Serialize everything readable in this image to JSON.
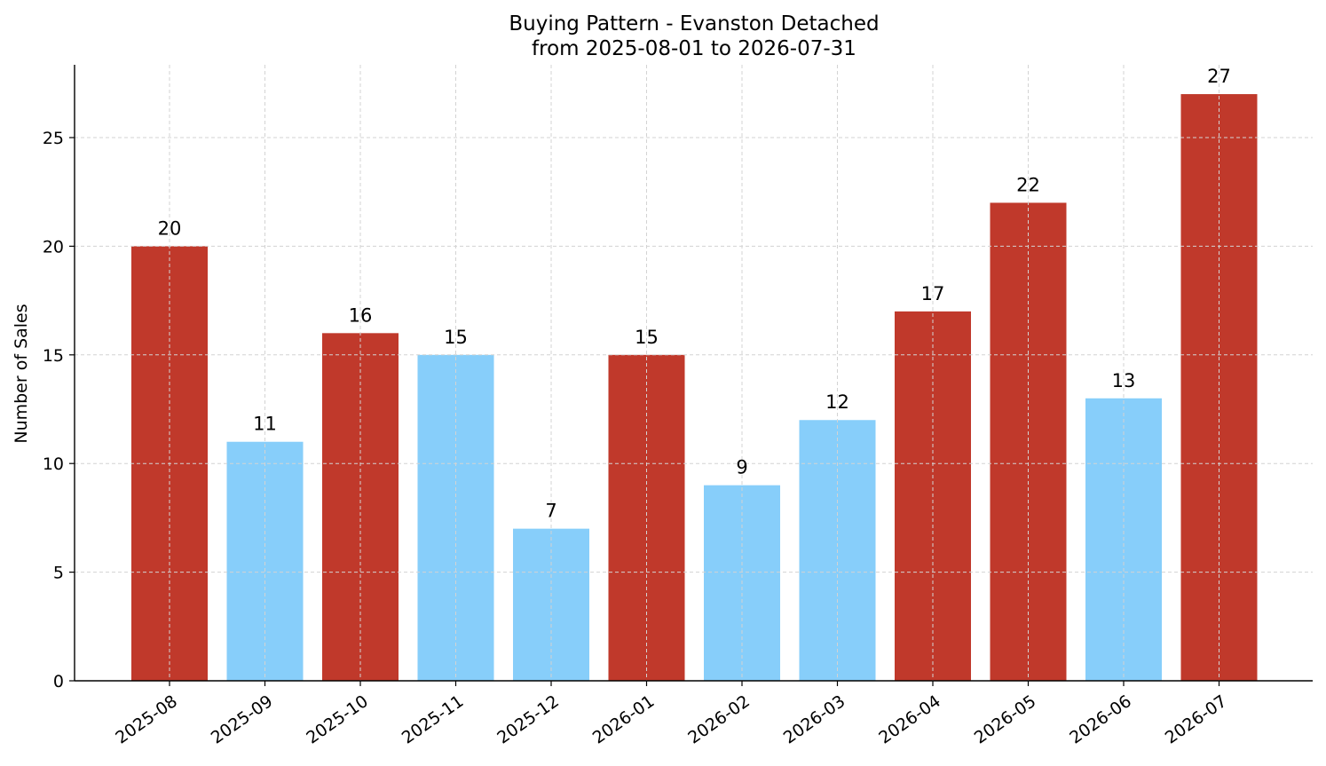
{
  "chart_data": {
    "type": "bar",
    "title": "Buying Pattern - Evanston Detached",
    "subtitle": "from 2025-08-01 to 2026-07-31",
    "xlabel": "",
    "ylabel": "Number of Sales",
    "categories": [
      "2025-08",
      "2025-09",
      "2025-10",
      "2025-11",
      "2025-12",
      "2026-01",
      "2026-02",
      "2026-03",
      "2026-04",
      "2026-05",
      "2026-06",
      "2026-07"
    ],
    "values": [
      20,
      11,
      16,
      15,
      7,
      15,
      9,
      12,
      17,
      22,
      13,
      27
    ],
    "bar_colors": [
      "#c0392b",
      "#87cefa",
      "#c0392b",
      "#87cefa",
      "#87cefa",
      "#c0392b",
      "#87cefa",
      "#87cefa",
      "#c0392b",
      "#c0392b",
      "#87cefa",
      "#c0392b"
    ],
    "ylim": [
      0,
      28.35
    ],
    "yticks": [
      0,
      5,
      10,
      15,
      20,
      25
    ],
    "grid": true,
    "data_labels": true
  }
}
